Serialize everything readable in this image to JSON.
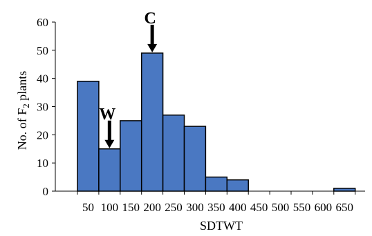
{
  "chart_data": {
    "type": "bar",
    "title": "",
    "xlabel": "SDTWT",
    "ylabel_prefix": "No. of F",
    "ylabel_subscript": "2",
    "ylabel_suffix": " plants",
    "ylim": [
      0,
      60
    ],
    "yticks": [
      0,
      10,
      20,
      30,
      40,
      50,
      60
    ],
    "categories": [
      "50",
      "100",
      "150",
      "200",
      "250",
      "300",
      "350",
      "400",
      "450",
      "500",
      "550",
      "600",
      "650"
    ],
    "values": [
      39,
      15,
      25,
      49,
      27,
      23,
      5,
      4,
      0,
      0,
      0,
      0,
      1
    ],
    "grid": false,
    "legend": "none",
    "bar_color": "#4a78c2",
    "annotations": [
      {
        "label": "W",
        "category": "100"
      },
      {
        "label": "C",
        "category": "200"
      }
    ]
  }
}
